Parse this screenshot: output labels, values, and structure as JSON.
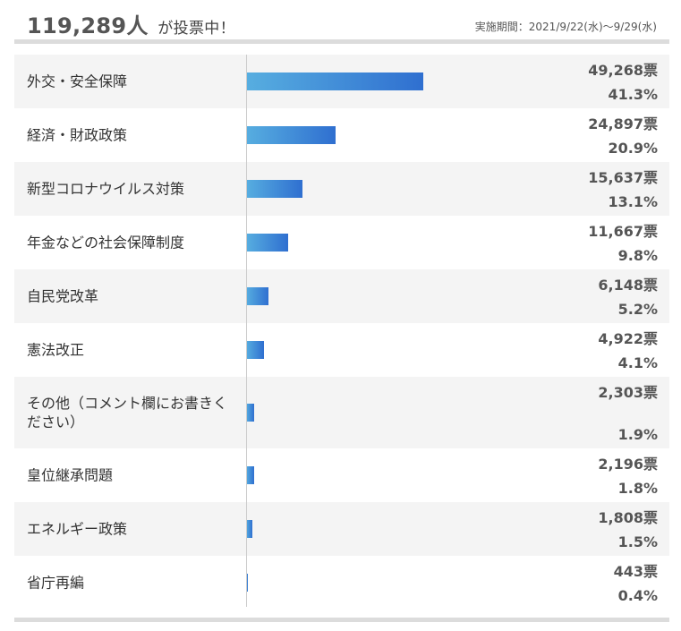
{
  "header": {
    "total": "119,289人",
    "total_suffix": "が投票中！",
    "period": "実施期間：2021/9/22(水)〜9/29(水)"
  },
  "colors": {
    "bar_start": "#57aee0",
    "bar_end": "#2f6fd0",
    "row_shade": "#f4f4f4"
  },
  "chart_data": {
    "type": "bar",
    "orientation": "horizontal",
    "categories": [
      "外交・安全保障",
      "経済・財政政策",
      "新型コロナウイルス対策",
      "年金などの社会保障制度",
      "自民党改革",
      "憲法改正",
      "その他（コメント欄にお書きください）",
      "皇位継承問題",
      "エネルギー政策",
      "省庁再編"
    ],
    "vote_labels": [
      "49,268票",
      "24,897票",
      "15,637票",
      "11,667票",
      "6,148票",
      "4,922票",
      "2,303票",
      "2,196票",
      "1,808票",
      "443票"
    ],
    "percent_labels": [
      "41.3%",
      "20.9%",
      "13.1%",
      "9.8%",
      "5.2%",
      "4.1%",
      "1.9%",
      "1.8%",
      "1.5%",
      "0.4%"
    ],
    "values": [
      49268,
      24897,
      15637,
      11667,
      6148,
      4922,
      2303,
      2196,
      1808,
      443
    ],
    "percent_values": [
      41.3,
      20.9,
      13.1,
      9.8,
      5.2,
      4.1,
      1.9,
      1.8,
      1.5,
      0.4
    ]
  }
}
